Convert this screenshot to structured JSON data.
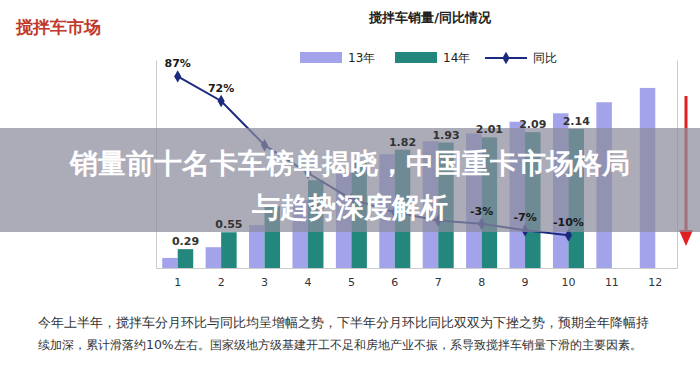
{
  "chart_data": {
    "type": "bar",
    "title": "搅拌车销量/同比情况",
    "annotations": {
      "section": "搅拌车市场",
      "banner": [
        "销量前十名卡车榜单揭晓，中国重卡市场格局",
        "与趋势深度解析"
      ],
      "note": [
        "今年上半年，搅拌车分月环比与同比均呈增幅之势，下半年分月环比同比双双为下挫之势，预期全年降幅持",
        "续加深，累计滑落约10%左右。国家级地方级基建开工不足和房地产业不振，系导致搅拌车销量下滑的主要因素。"
      ]
    },
    "categories": [
      "1",
      "2",
      "3",
      "4",
      "5",
      "6",
      "7",
      "8",
      "9",
      "10",
      "11",
      "12"
    ],
    "series": [
      {
        "name": "13年",
        "type": "bar",
        "color": "#a3a3ec",
        "values": [
          0.155,
          0.32,
          0.66,
          1.05,
          1.47,
          1.75,
          1.95,
          2.07,
          2.25,
          2.38,
          2.55,
          2.77
        ]
      },
      {
        "name": "14年",
        "type": "bar",
        "color": "#23877d",
        "values": [
          0.29,
          0.55,
          0.95,
          1.35,
          1.65,
          1.82,
          1.93,
          2.01,
          2.09,
          2.14,
          null,
          null
        ],
        "value_labels": [
          "0.29",
          "0.55",
          null,
          null,
          null,
          "1.82",
          "1.93",
          "2.01",
          "2.09",
          "2.14",
          null,
          null
        ]
      },
      {
        "name": "同比",
        "type": "line",
        "color": "#1c2a7e",
        "marker": "diamond",
        "axis": "y2",
        "values": [
          87,
          72,
          45,
          28,
          12,
          4,
          -1,
          -3,
          -7,
          -10,
          null,
          null
        ],
        "value_labels": [
          "87%",
          "72%",
          null,
          null,
          null,
          null,
          null,
          "-3%",
          "-7%",
          "-10%",
          null,
          null
        ]
      }
    ],
    "ylim": [
      0,
      3.2
    ],
    "yticks": [],
    "y2lim": [
      -30,
      97
    ],
    "y2ticks": [],
    "tick_labels": "x",
    "grid": false,
    "legend": "top",
    "data_labels": true
  }
}
